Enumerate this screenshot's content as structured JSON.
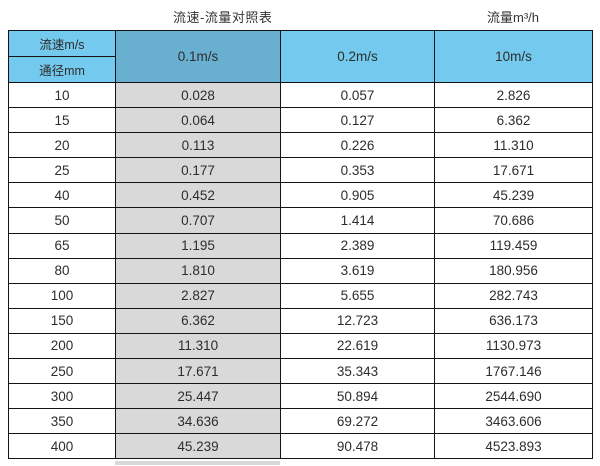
{
  "titles": {
    "main": "流速-流量对照表",
    "unit": "流量m³/h"
  },
  "colors": {
    "header_blue": "#74caee",
    "header_steel": "#69afcf",
    "column_gray": "#d9d9d9",
    "grid_border": "#151515"
  },
  "chart_data": {
    "type": "table",
    "title": "流速-流量对照表",
    "unit_label": "流量m³/h",
    "corner_top": "流速m/s",
    "corner_bottom": "通径mm",
    "columns": [
      "0.1m/s",
      "0.2m/s",
      "10m/s"
    ],
    "rows": [
      {
        "diameter": "10",
        "values": [
          "0.028",
          "0.057",
          "2.826"
        ]
      },
      {
        "diameter": "15",
        "values": [
          "0.064",
          "0.127",
          "6.362"
        ]
      },
      {
        "diameter": "20",
        "values": [
          "0.113",
          "0.226",
          "11.310"
        ]
      },
      {
        "diameter": "25",
        "values": [
          "0.177",
          "0.353",
          "17.671"
        ]
      },
      {
        "diameter": "40",
        "values": [
          "0.452",
          "0.905",
          "45.239"
        ]
      },
      {
        "diameter": "50",
        "values": [
          "0.707",
          "1.414",
          "70.686"
        ]
      },
      {
        "diameter": "65",
        "values": [
          "1.195",
          "2.389",
          "119.459"
        ]
      },
      {
        "diameter": "80",
        "values": [
          "1.810",
          "3.619",
          "180.956"
        ]
      },
      {
        "diameter": "100",
        "values": [
          "2.827",
          "5.655",
          "282.743"
        ]
      },
      {
        "diameter": "150",
        "values": [
          "6.362",
          "12.723",
          "636.173"
        ]
      },
      {
        "diameter": "200",
        "values": [
          "11.310",
          "22.619",
          "1130.973"
        ]
      },
      {
        "diameter": "250",
        "values": [
          "17.671",
          "35.343",
          "1767.146"
        ]
      },
      {
        "diameter": "300",
        "values": [
          "25.447",
          "50.894",
          "2544.690"
        ]
      },
      {
        "diameter": "350",
        "values": [
          "34.636",
          "69.272",
          "3463.606"
        ]
      },
      {
        "diameter": "400",
        "values": [
          "45.239",
          "90.478",
          "4523.893"
        ]
      }
    ]
  }
}
